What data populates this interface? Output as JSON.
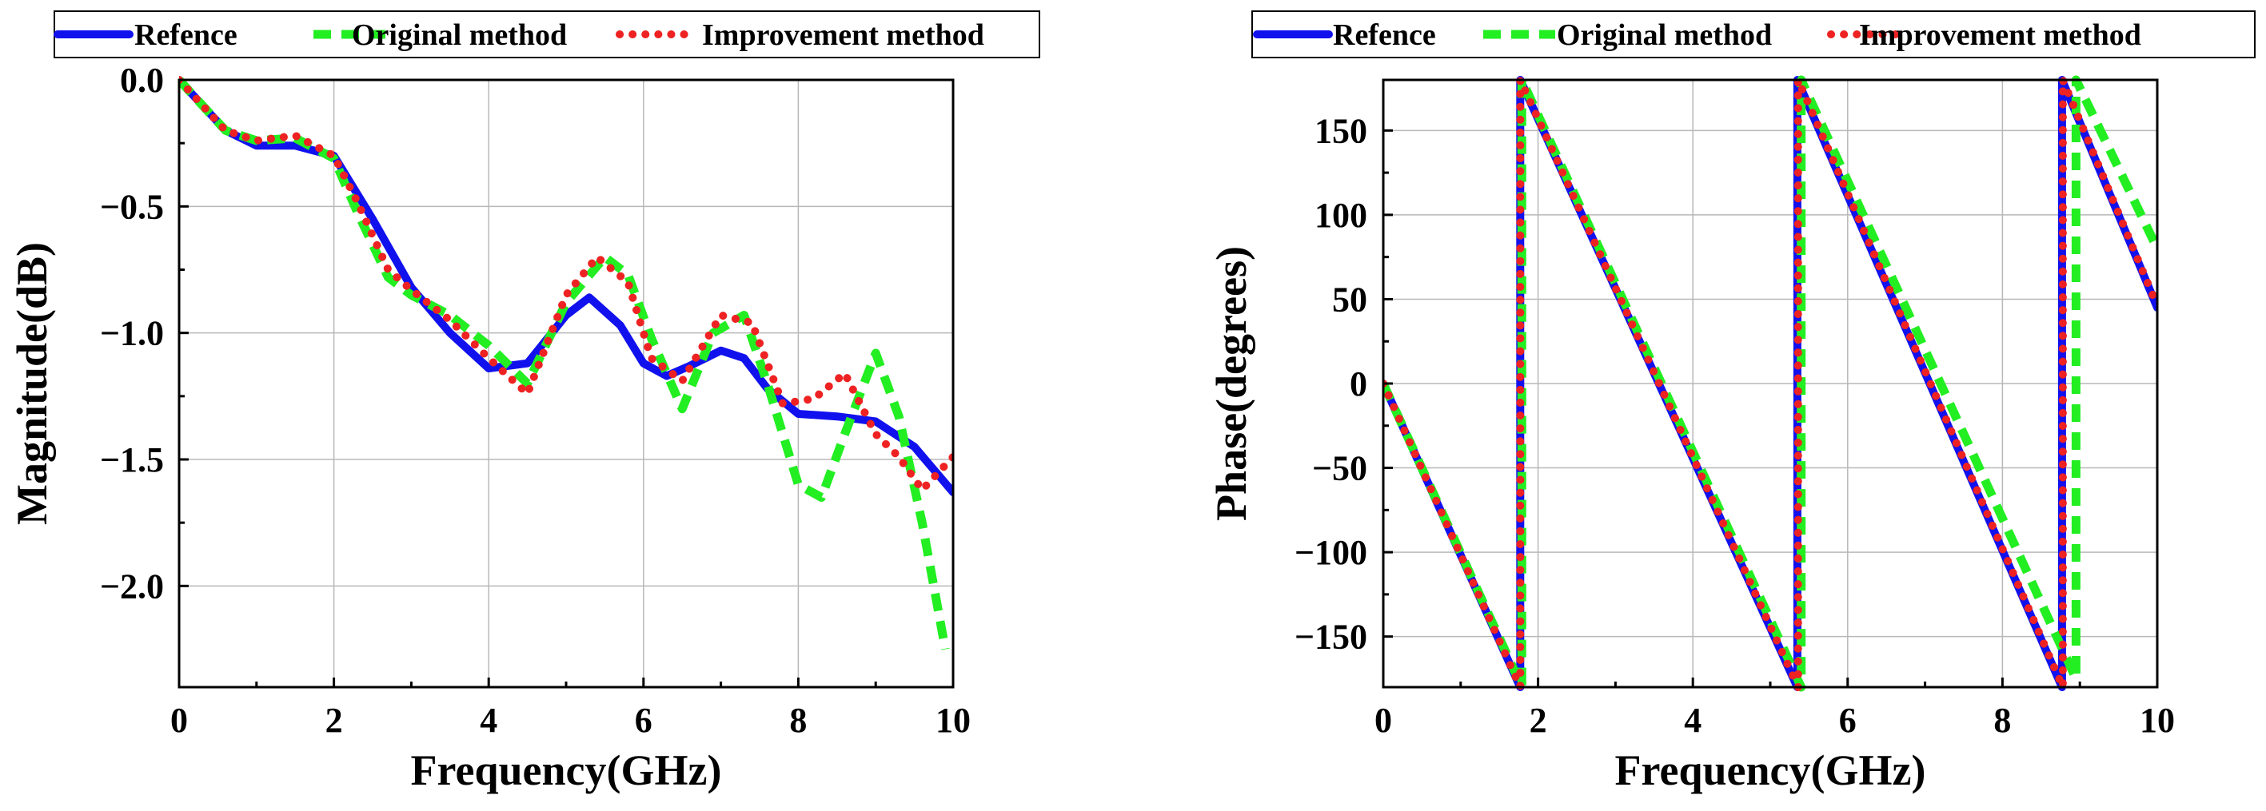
{
  "chart_data": [
    {
      "type": "line",
      "title": "",
      "xlabel": "Frequency(GHz)",
      "ylabel": "Magnitude(dB)",
      "xlim": [
        0,
        10
      ],
      "ylim": [
        -2.4,
        0.0
      ],
      "xticks": [
        0,
        2,
        4,
        6,
        8,
        10
      ],
      "xtick_labels": [
        "0",
        "2",
        "4",
        "6",
        "8",
        "10"
      ],
      "yticks": [
        0.0,
        -0.5,
        -1.0,
        -1.5,
        -2.0
      ],
      "ytick_labels": [
        "0.0",
        "−0.5",
        "−1.0",
        "−1.5",
        "−2.0"
      ],
      "grid": true,
      "legend": "top",
      "series": [
        {
          "name": "Refence",
          "color": "#1111ee",
          "style": "solid",
          "x": [
            0,
            0.3,
            0.6,
            1.0,
            1.5,
            2.0,
            2.5,
            3.0,
            3.5,
            4.0,
            4.5,
            5.0,
            5.3,
            5.7,
            6.0,
            6.3,
            6.6,
            7.0,
            7.3,
            7.6,
            8.0,
            8.5,
            9.0,
            9.5,
            10.0
          ],
          "y": [
            0,
            -0.1,
            -0.2,
            -0.26,
            -0.26,
            -0.3,
            -0.55,
            -0.82,
            -1.0,
            -1.14,
            -1.12,
            -0.93,
            -0.86,
            -0.97,
            -1.12,
            -1.17,
            -1.13,
            -1.07,
            -1.1,
            -1.22,
            -1.32,
            -1.33,
            -1.35,
            -1.45,
            -1.63
          ]
        },
        {
          "name": "Original method",
          "color": "#22ee22",
          "style": "dashed",
          "x": [
            0,
            0.3,
            0.6,
            1.0,
            1.5,
            2.0,
            2.3,
            2.7,
            3.0,
            3.5,
            4.0,
            4.5,
            5.0,
            5.5,
            5.8,
            6.1,
            6.5,
            6.9,
            7.3,
            7.6,
            8.0,
            8.3,
            8.6,
            9.0,
            9.3,
            9.6,
            9.9
          ],
          "y": [
            0,
            -0.1,
            -0.2,
            -0.24,
            -0.23,
            -0.31,
            -0.52,
            -0.78,
            -0.85,
            -0.93,
            -1.05,
            -1.2,
            -0.88,
            -0.7,
            -0.77,
            -1.02,
            -1.3,
            -1.0,
            -0.93,
            -1.2,
            -1.6,
            -1.65,
            -1.4,
            -1.08,
            -1.33,
            -1.75,
            -2.25
          ]
        },
        {
          "name": "Improvement method",
          "color": "#ee2222",
          "style": "dotted",
          "x": [
            0,
            0.3,
            0.6,
            1.0,
            1.5,
            2.0,
            2.3,
            2.7,
            3.0,
            3.5,
            4.0,
            4.5,
            5.0,
            5.4,
            5.8,
            6.1,
            6.5,
            7.0,
            7.4,
            7.8,
            8.2,
            8.6,
            9.0,
            9.3,
            9.6,
            10.0
          ],
          "y": [
            0,
            -0.1,
            -0.2,
            -0.24,
            -0.22,
            -0.3,
            -0.48,
            -0.75,
            -0.83,
            -0.95,
            -1.1,
            -1.24,
            -0.85,
            -0.7,
            -0.8,
            -1.1,
            -1.19,
            -0.93,
            -0.96,
            -1.28,
            -1.26,
            -1.16,
            -1.4,
            -1.49,
            -1.62,
            -1.49
          ]
        }
      ]
    },
    {
      "type": "line",
      "title": "",
      "xlabel": "Frequency(GHz)",
      "ylabel": "Phase(degrees)",
      "xlim": [
        0,
        10
      ],
      "ylim": [
        -180,
        180
      ],
      "xticks": [
        0,
        2,
        4,
        6,
        8,
        10
      ],
      "xtick_labels": [
        "0",
        "2",
        "4",
        "6",
        "8",
        "10"
      ],
      "yticks": [
        150,
        100,
        50,
        0,
        -50,
        -100,
        -150
      ],
      "ytick_labels": [
        "150",
        "100",
        "50",
        "0",
        "−50",
        "−100",
        "−150"
      ],
      "grid": true,
      "legend": "top",
      "series": [
        {
          "name": "Refence",
          "color": "#1111ee",
          "style": "solid",
          "x": [
            0,
            1.77,
            1.77,
            5.35,
            5.35,
            8.77,
            8.77,
            10.0
          ],
          "y": [
            0,
            -180,
            180,
            -180,
            180,
            -180,
            180,
            45
          ]
        },
        {
          "name": "Original method",
          "color": "#22ee22",
          "style": "dashed",
          "x": [
            0,
            1.79,
            1.79,
            5.4,
            5.4,
            8.95,
            8.95,
            10.0
          ],
          "y": [
            0,
            -180,
            180,
            -180,
            180,
            -175,
            180,
            80
          ]
        },
        {
          "name": "Improvement method",
          "color": "#ee2222",
          "style": "dotted",
          "x": [
            0,
            1.77,
            1.77,
            5.36,
            5.36,
            8.78,
            8.78,
            10.0
          ],
          "y": [
            0,
            -180,
            180,
            -180,
            180,
            -180,
            180,
            46
          ]
        }
      ]
    }
  ]
}
